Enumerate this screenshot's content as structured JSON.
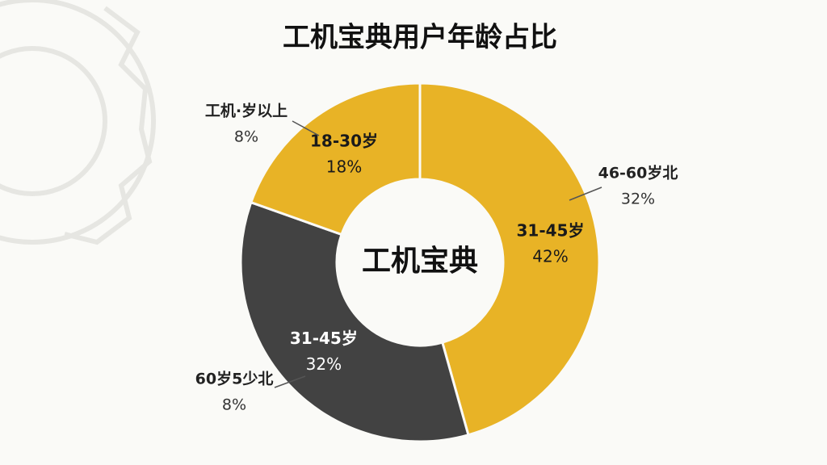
{
  "chart_data": {
    "type": "donut",
    "title": "工机宝典用户年龄占比",
    "center_label": "工机宝典",
    "categories": [
      "31-45岁",
      "31-45岁",
      "18-30岁"
    ],
    "values": [
      42,
      32,
      18
    ],
    "value_labels": [
      "42%",
      "32%",
      "18%"
    ],
    "colors": [
      "#e8b326",
      "#424242",
      "#e8b326"
    ],
    "label_colors": [
      "#1a1a1a",
      "#ffffff",
      "#1a1a1a"
    ],
    "callouts": [
      {
        "label": "工机·岁以上",
        "value": 8,
        "value_label": "8%"
      },
      {
        "label": "46-60岁北",
        "value": 32,
        "value_label": "32%"
      },
      {
        "label": "60岁5少北",
        "value": 8,
        "value_label": "8%"
      }
    ]
  }
}
